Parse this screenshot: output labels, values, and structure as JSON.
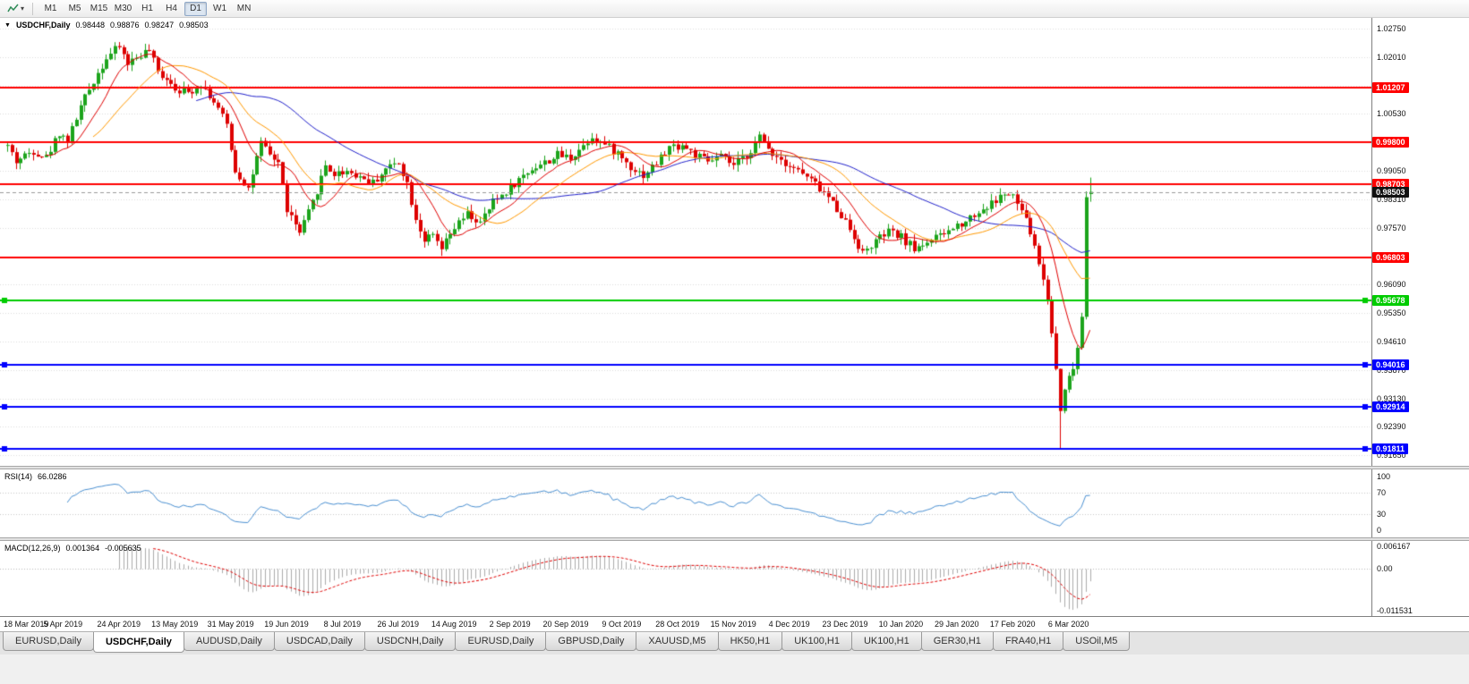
{
  "toolbar": {
    "timeframes": [
      "M1",
      "M5",
      "M15",
      "M30",
      "H1",
      "H4",
      "D1",
      "W1",
      "MN"
    ],
    "active_timeframe": "D1"
  },
  "chart": {
    "title": "USDCHF,Daily",
    "ohlc": {
      "open": "0.98448",
      "high": "0.98876",
      "low": "0.98247",
      "close": "0.98503"
    },
    "price_axis": [
      "1.02750",
      "1.02010",
      "1.01270",
      "1.00530",
      "0.99790",
      "0.99050",
      "0.98310",
      "0.97570",
      "0.96830",
      "0.96090",
      "0.95350",
      "0.94610",
      "0.93870",
      "0.93130",
      "0.92390",
      "0.91650"
    ],
    "levels": [
      {
        "price": 1.01207,
        "label": "1.01207",
        "color": "#FF0000",
        "type": "resistance",
        "handles": false
      },
      {
        "price": 0.998,
        "label": "0.99800",
        "color": "#FF0000",
        "type": "resistance",
        "handles": false
      },
      {
        "price": 0.98703,
        "label": "0.98703",
        "color": "#FF0000",
        "type": "resistance",
        "handles": false
      },
      {
        "price": 0.96803,
        "label": "0.96803",
        "color": "#FF0000",
        "type": "support",
        "handles": false
      },
      {
        "price": 0.95678,
        "label": "0.95678",
        "color": "#00CC00",
        "type": "support",
        "handles": true
      },
      {
        "price": 0.94016,
        "label": "0.94016",
        "color": "#0000FF",
        "type": "support",
        "handles": true
      },
      {
        "price": 0.92914,
        "label": "0.92914",
        "color": "#0000FF",
        "type": "support",
        "handles": true
      },
      {
        "price": 0.91811,
        "label": "0.91811",
        "color": "#0000FF",
        "type": "support",
        "handles": true
      }
    ],
    "current_price": {
      "value": 0.98503,
      "label": "0.98503"
    }
  },
  "rsi": {
    "label": "RSI(14)",
    "value": "66.0286",
    "axis": [
      {
        "label": "100",
        "value": 100
      },
      {
        "label": "70",
        "value": 70
      },
      {
        "label": "30",
        "value": 30
      },
      {
        "label": "0",
        "value": 0
      }
    ],
    "level_lines": [
      70,
      30
    ]
  },
  "macd": {
    "label": "MACD(12,26,9)",
    "main": "0.001364",
    "signal": "-0.005635",
    "axis_top": "0.006167",
    "axis_zero": "0.00",
    "axis_bottom": "-0.011531"
  },
  "tabs": [
    {
      "label": "EURUSD,Daily",
      "active": false
    },
    {
      "label": "USDCHF,Daily",
      "active": true
    },
    {
      "label": "AUDUSD,Daily",
      "active": false
    },
    {
      "label": "USDCAD,Daily",
      "active": false
    },
    {
      "label": "USDCNH,Daily",
      "active": false
    },
    {
      "label": "EURUSD,Daily",
      "active": false
    },
    {
      "label": "GBPUSD,Daily",
      "active": false
    },
    {
      "label": "XAUUSD,M5",
      "active": false
    },
    {
      "label": "HK50,H1",
      "active": false
    },
    {
      "label": "UK100,H1",
      "active": false
    },
    {
      "label": "UK100,H1",
      "active": false
    },
    {
      "label": "GER30,H1",
      "active": false
    },
    {
      "label": "FRA40,H1",
      "active": false
    },
    {
      "label": "USOil,M5",
      "active": false
    }
  ],
  "colors": {
    "bull": "#1CA41C",
    "bear": "#DD0000",
    "grid": "#DCDCDC",
    "rsi_line": "#4A90D2",
    "macd_hist": "#ABABAB",
    "macd_signal": "#E00000",
    "bid_line": "#999999"
  },
  "chart_data": {
    "type": "candlestick",
    "symbol": "USDCHF",
    "timeframe": "Daily",
    "bars": 253,
    "seed": 42,
    "scale_top": 1.0275,
    "scale_step": 0.0074,
    "label_every": 13,
    "date_labels": [
      "18 Mar 2019",
      "5 Apr 2019",
      "24 Apr 2019",
      "13 May 2019",
      "31 May 2019",
      "19 Jun 2019",
      "8 Jul 2019",
      "26 Jul 2019",
      "14 Aug 2019",
      "2 Sep 2019",
      "20 Sep 2019",
      "9 Oct 2019",
      "28 Oct 2019",
      "15 Nov 2019",
      "4 Dec 2019",
      "23 Dec 2019",
      "10 Jan 2020",
      "29 Jan 2020",
      "17 Feb 2020",
      "6 Mar 2020"
    ],
    "price_waypoints": [
      [
        0,
        0.997
      ],
      [
        2,
        0.993
      ],
      [
        4,
        0.9945
      ],
      [
        6,
        0.9958
      ],
      [
        9,
        0.994
      ],
      [
        12,
        1.0005
      ],
      [
        14,
        0.9984
      ],
      [
        17,
        1.0072
      ],
      [
        20,
        1.014
      ],
      [
        23,
        1.02
      ],
      [
        26,
        1.0228
      ],
      [
        28,
        1.0185
      ],
      [
        31,
        1.0208
      ],
      [
        33,
        1.0218
      ],
      [
        35,
        1.016
      ],
      [
        37,
        1.0148
      ],
      [
        39,
        1.0122
      ],
      [
        42,
        1.0108
      ],
      [
        45,
        1.0133
      ],
      [
        48,
        1.0085
      ],
      [
        51,
        1.0025
      ],
      [
        53,
        0.9905
      ],
      [
        56,
        0.986
      ],
      [
        59,
        0.9975
      ],
      [
        61,
        0.9945
      ],
      [
        63,
        0.9928
      ],
      [
        65,
        0.9805
      ],
      [
        68,
        0.9742
      ],
      [
        71,
        0.9822
      ],
      [
        74,
        0.992
      ],
      [
        76,
        0.9896
      ],
      [
        79,
        0.9906
      ],
      [
        82,
        0.989
      ],
      [
        85,
        0.9874
      ],
      [
        88,
        0.991
      ],
      [
        91,
        0.993
      ],
      [
        93,
        0.9872
      ],
      [
        95,
        0.9782
      ],
      [
        97,
        0.9726
      ],
      [
        99,
        0.9734
      ],
      [
        101,
        0.97
      ],
      [
        104,
        0.9756
      ],
      [
        107,
        0.9792
      ],
      [
        110,
        0.9768
      ],
      [
        113,
        0.9824
      ],
      [
        116,
        0.9852
      ],
      [
        119,
        0.9882
      ],
      [
        122,
        0.9912
      ],
      [
        125,
        0.9926
      ],
      [
        128,
        0.9946
      ],
      [
        131,
        0.994
      ],
      [
        134,
        0.9972
      ],
      [
        136,
        0.9996
      ],
      [
        139,
        0.9973
      ],
      [
        142,
        0.995
      ],
      [
        145,
        0.9916
      ],
      [
        148,
        0.9894
      ],
      [
        151,
        0.9926
      ],
      [
        154,
        0.9966
      ],
      [
        157,
        0.9972
      ],
      [
        160,
        0.9946
      ],
      [
        163,
        0.9928
      ],
      [
        166,
        0.9942
      ],
      [
        169,
        0.9918
      ],
      [
        172,
        0.9946
      ],
      [
        175,
        0.9992
      ],
      [
        178,
        0.9952
      ],
      [
        181,
        0.9928
      ],
      [
        184,
        0.9906
      ],
      [
        188,
        0.987
      ],
      [
        191,
        0.9836
      ],
      [
        194,
        0.9792
      ],
      [
        197,
        0.9734
      ],
      [
        199,
        0.969
      ],
      [
        202,
        0.9722
      ],
      [
        205,
        0.9746
      ],
      [
        208,
        0.9732
      ],
      [
        211,
        0.9702
      ],
      [
        214,
        0.9722
      ],
      [
        217,
        0.9734
      ],
      [
        220,
        0.9756
      ],
      [
        223,
        0.9778
      ],
      [
        226,
        0.9798
      ],
      [
        229,
        0.982
      ],
      [
        232,
        0.9846
      ],
      [
        234,
        0.9836
      ],
      [
        236,
        0.9802
      ],
      [
        238,
        0.9746
      ],
      [
        240,
        0.9666
      ],
      [
        242,
        0.9572
      ],
      [
        244,
        0.9392
      ],
      [
        245,
        0.9282
      ],
      [
        246,
        0.9346
      ],
      [
        247,
        0.9366
      ],
      [
        248,
        0.9392
      ],
      [
        249,
        0.9446
      ],
      [
        250,
        0.953
      ],
      [
        251,
        0.9845
      ],
      [
        252,
        0.98503
      ]
    ],
    "last_ohlc": [
      0.98448,
      0.98876,
      0.98247,
      0.98503
    ],
    "crash_spike": {
      "day": 245,
      "low": 0.9182
    },
    "ma": {
      "fast": {
        "period": 10,
        "color": "#E00000"
      },
      "mid": {
        "period": 21,
        "color": "#FF9900"
      },
      "slow": {
        "period": 45,
        "color": "#2222CC"
      }
    },
    "indicators": [
      {
        "name": "RSI",
        "period": 14,
        "current": 66.0286
      },
      {
        "name": "MACD",
        "params": [
          12,
          26,
          9
        ],
        "main": 0.001364,
        "signal": -0.005635
      }
    ]
  }
}
